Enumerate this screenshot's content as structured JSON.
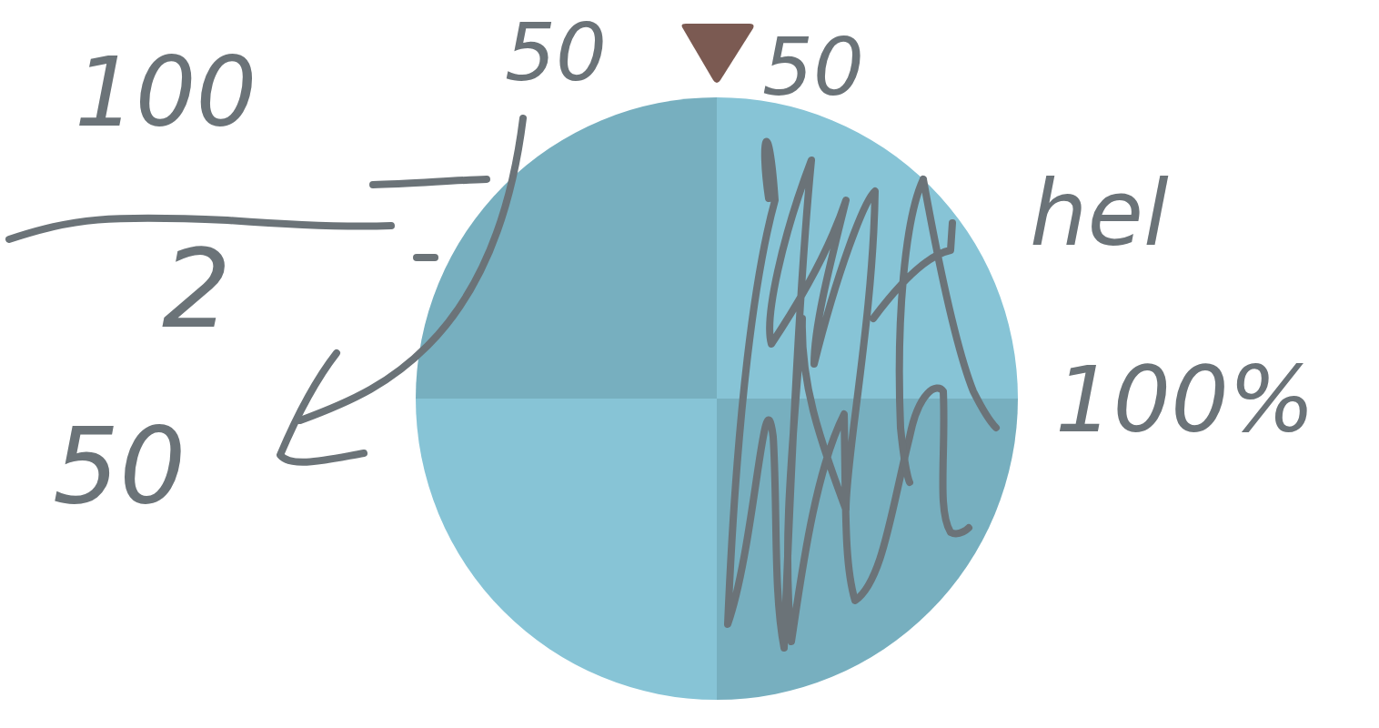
{
  "chart_data": {
    "type": "pie",
    "values": [
      25,
      25,
      25,
      25
    ],
    "colors": [
      "#87c4d6",
      "#77afbf",
      "#87c4d6",
      "#77afbf"
    ],
    "annotations": [
      "100",
      "2",
      "50",
      "50",
      "50",
      "hel",
      "100%"
    ]
  }
}
